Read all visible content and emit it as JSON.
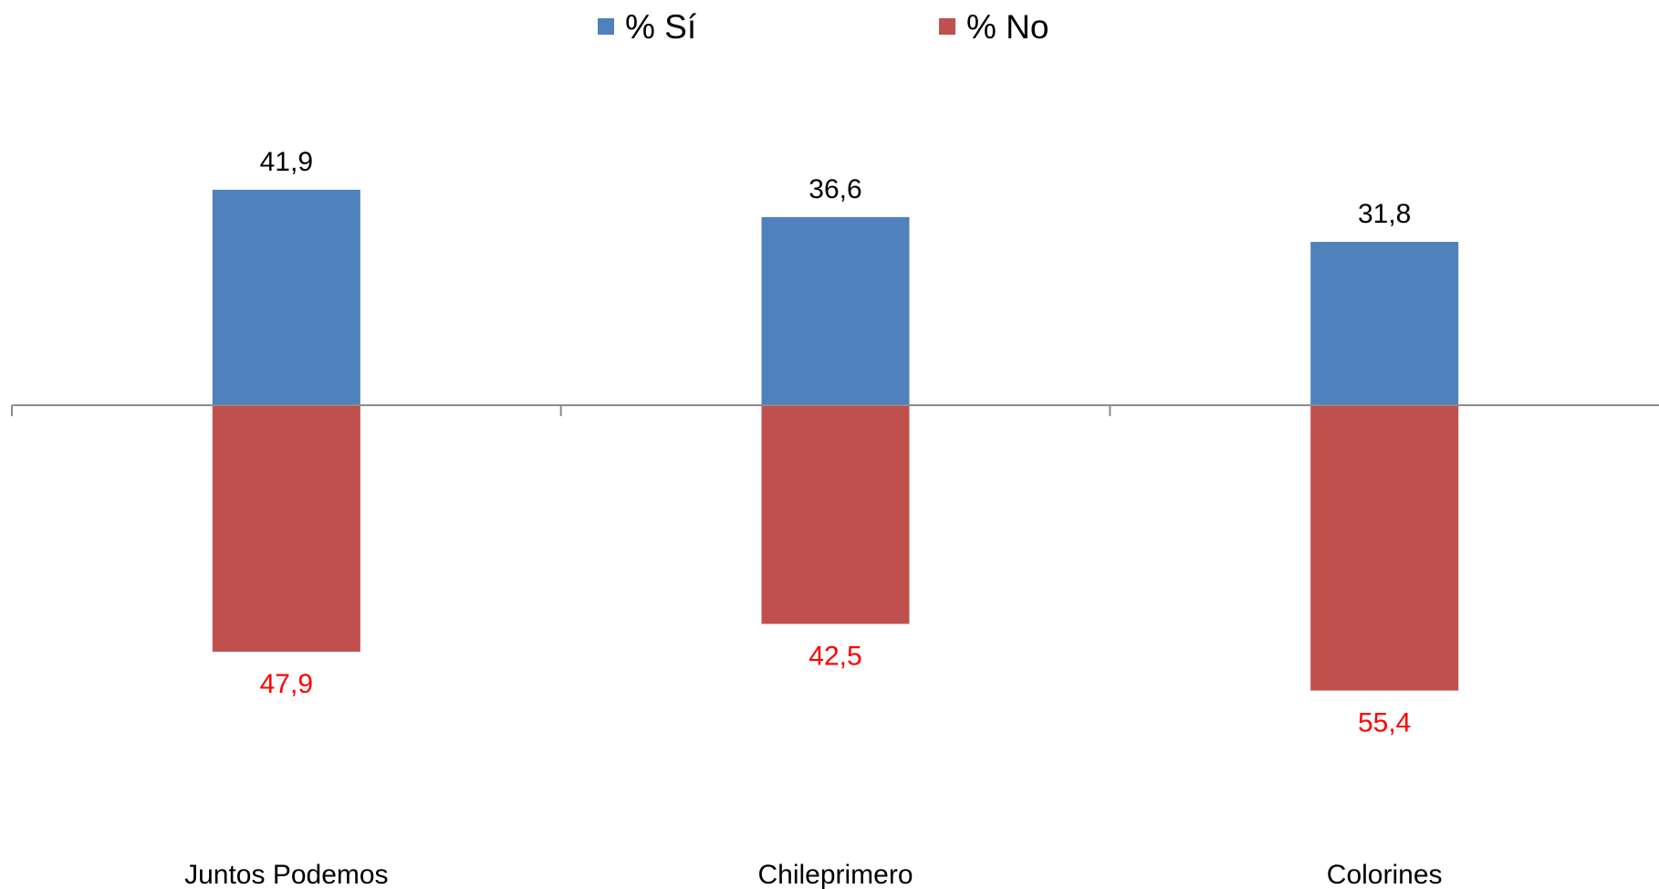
{
  "chart_data": {
    "type": "bar",
    "stacking": "diverging",
    "categories": [
      "Juntos Podemos",
      "Chileprimero",
      "Colorines"
    ],
    "series": [
      {
        "name": "% Sí",
        "values": [
          41.9,
          36.6,
          31.8
        ],
        "labels": [
          "41,9",
          "36,6",
          "31,8"
        ],
        "direction": "up",
        "color": "#4F81BD",
        "label_color": "#000000"
      },
      {
        "name": "% No",
        "values": [
          47.9,
          42.5,
          55.4
        ],
        "labels": [
          "47,9",
          "42,5",
          "55,4"
        ],
        "direction": "down",
        "color": "#C0504D",
        "label_color": "#FF0000"
      }
    ],
    "title": "",
    "xlabel": "",
    "ylabel": "",
    "legend_position": "top",
    "grid": false,
    "axis_color": "#8C8C8C"
  }
}
